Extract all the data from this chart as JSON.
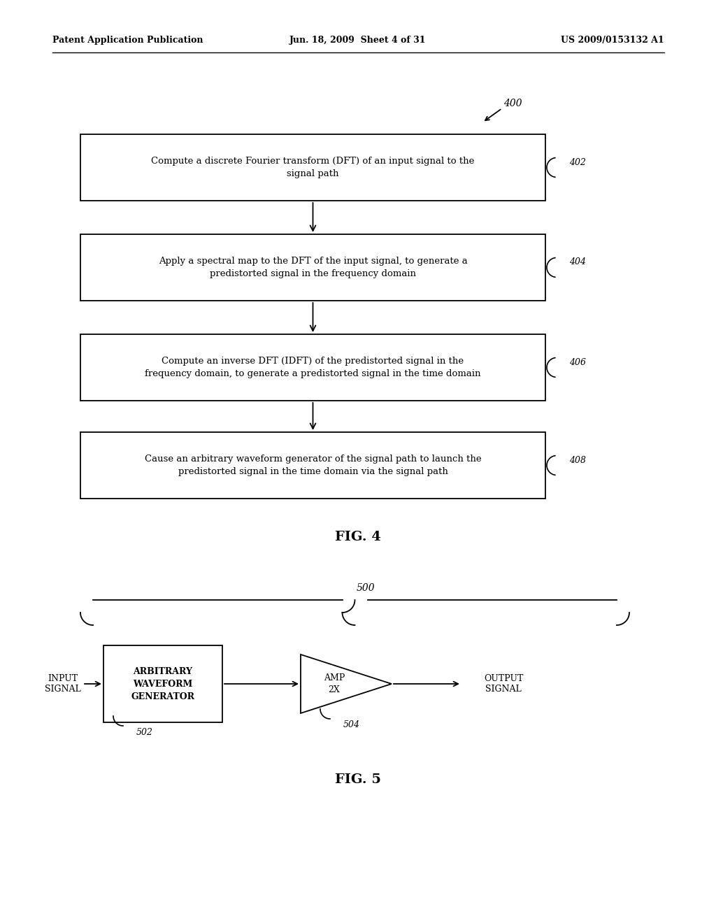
{
  "header_left": "Patent Application Publication",
  "header_center": "Jun. 18, 2009  Sheet 4 of 31",
  "header_right": "US 2009/0153132 A1",
  "fig4_label": "FIG. 4",
  "fig5_label": "FIG. 5",
  "fig4_ref": "400",
  "boxes": [
    {
      "text": "Compute a discrete Fourier transform (DFT) of an input signal to the\nsignal path",
      "ref": "402"
    },
    {
      "text": "Apply a spectral map to the DFT of the input signal, to generate a\npredistorted signal in the frequency domain",
      "ref": "404"
    },
    {
      "text": "Compute an inverse DFT (IDFT) of the predistorted signal in the\nfrequency domain, to generate a predistorted signal in the time domain",
      "ref": "406"
    },
    {
      "text": "Cause an arbitrary waveform generator of the signal path to launch the\npredistorted signal in the time domain via the signal path",
      "ref": "408"
    }
  ],
  "fig5_ref": "500",
  "awg_label": "ARBITRARY\nWAVEFORM\nGENERATOR",
  "awg_ref": "502",
  "amp_label": "AMP\n2X",
  "amp_ref": "504",
  "input_label": "INPUT\nSIGNAL",
  "output_label": "OUTPUT\nSIGNAL",
  "bg_color": "#ffffff",
  "line_color": "#000000"
}
